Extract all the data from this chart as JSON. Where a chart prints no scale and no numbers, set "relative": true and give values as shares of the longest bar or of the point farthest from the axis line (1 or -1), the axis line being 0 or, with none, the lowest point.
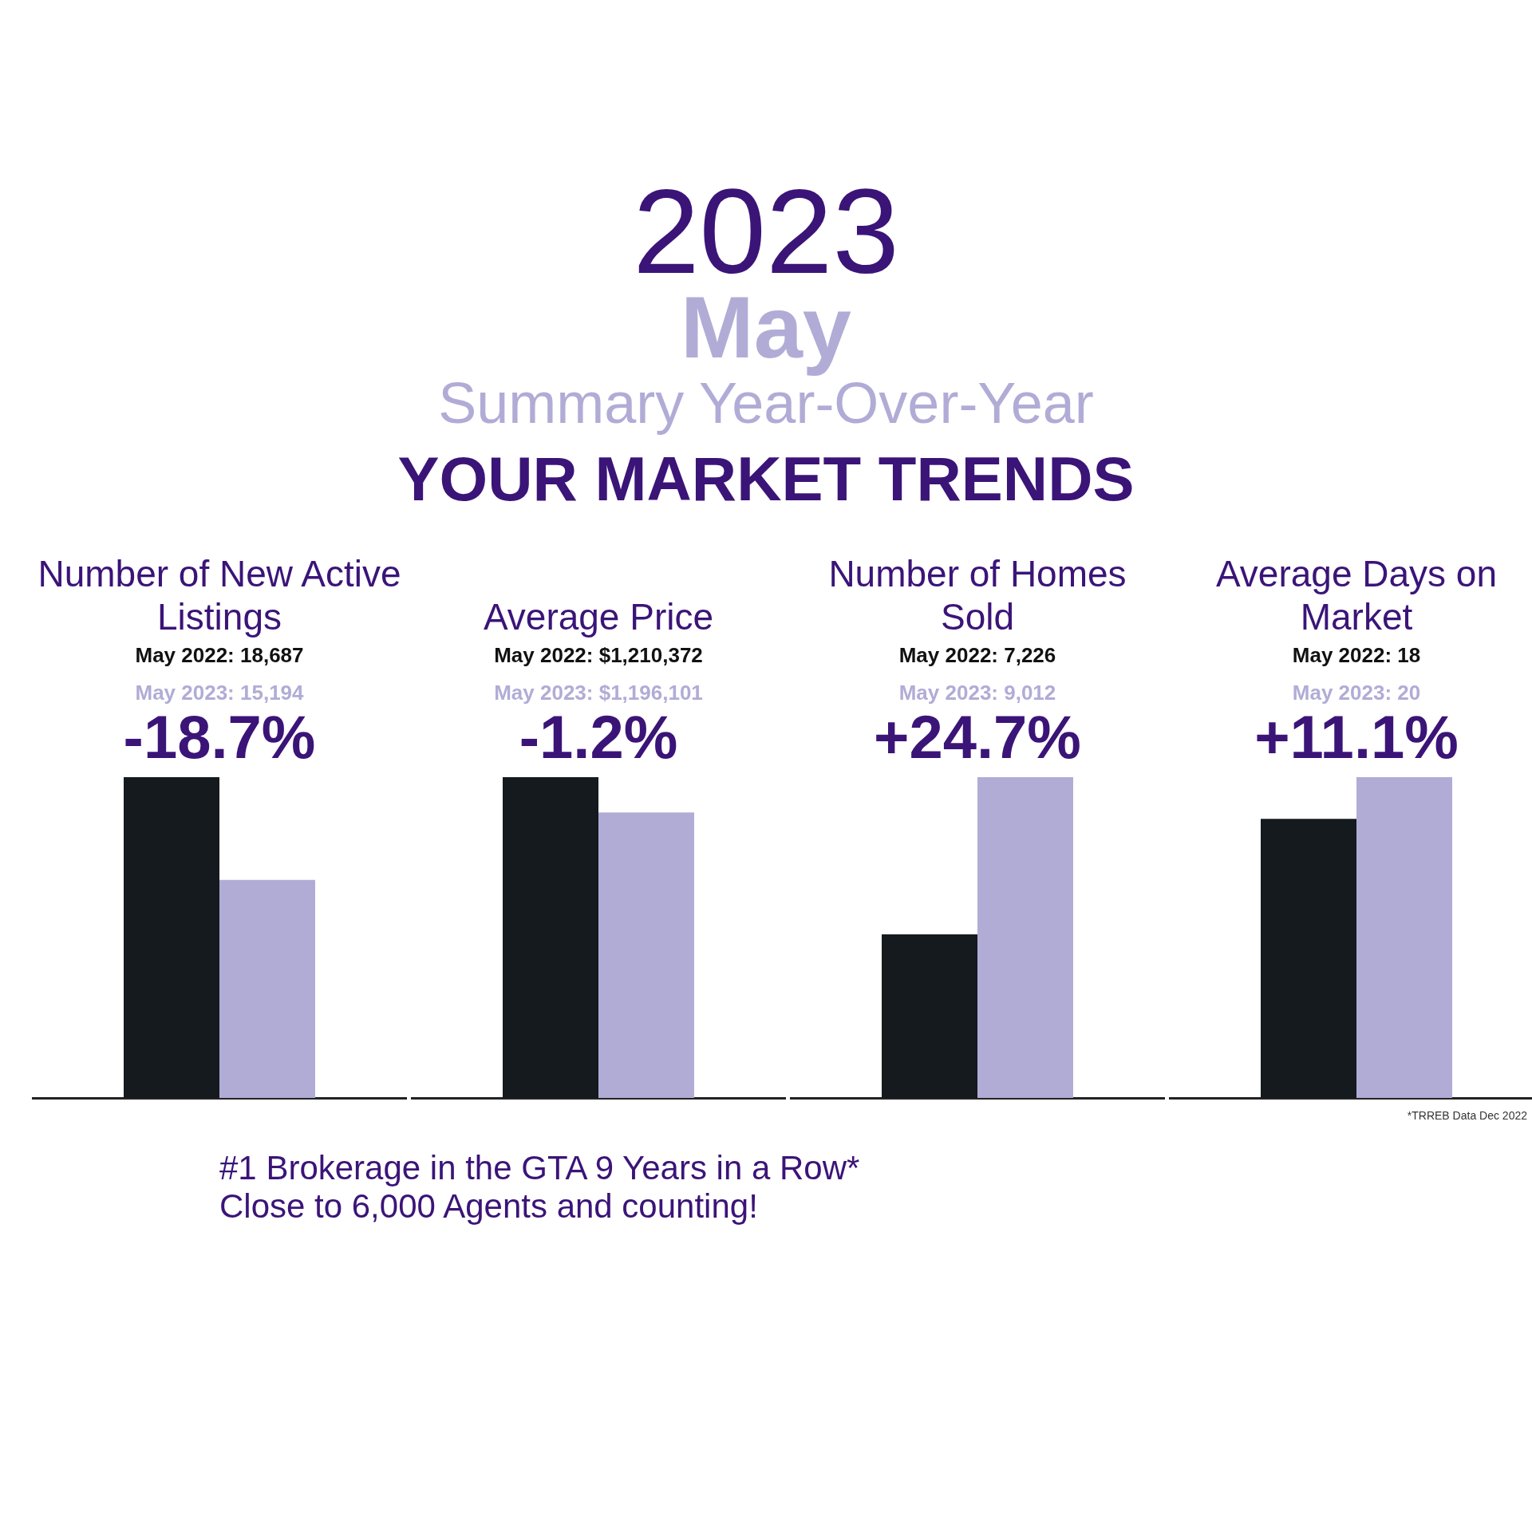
{
  "chart_data": [
    {
      "type": "other",
      "title": "2023",
      "subtitle": "May",
      "annotations": [
        "Summary  Year-Over-Year",
        "YOUR MARKET TRENDS"
      ]
    },
    {
      "type": "bar",
      "title": "Number of New Active Listings",
      "annotations": [
        "May 2022: 18,687",
        "May 2023: 15,194",
        "-18.7%"
      ],
      "categories": [
        null
      ],
      "relative": true,
      "series": [
        {
          "color": "#141a1d",
          "values": [
            1
          ]
        },
        {
          "color": "#b1acd6",
          "values": [
            0.68
          ]
        }
      ]
    },
    {
      "type": "bar",
      "title": "Average Price",
      "annotations": [
        "May 2022: $1,210,372",
        "May 2023: $1,196,101",
        "-1.2%"
      ],
      "categories": [
        null
      ],
      "relative": true,
      "series": [
        {
          "color": "#141a1d",
          "values": [
            1
          ]
        },
        {
          "color": "#b1acd6",
          "values": [
            0.89
          ]
        }
      ]
    },
    {
      "type": "bar",
      "title": "Number of Homes Sold",
      "annotations": [
        "May 2022: 7,226",
        "May 2023: 9,012",
        "+24.7%"
      ],
      "categories": [
        null
      ],
      "relative": true,
      "series": [
        {
          "color": "#141a1d",
          "values": [
            0.51
          ]
        },
        {
          "color": "#b1acd6",
          "values": [
            1
          ]
        }
      ]
    },
    {
      "type": "bar",
      "title": "Average Days on Market",
      "annotations": [
        "May 2022: 18",
        "May 2023: 20",
        "+11.1%"
      ],
      "categories": [
        null
      ],
      "relative": true,
      "series": [
        {
          "color": "#141a1d",
          "values": [
            0.87
          ]
        },
        {
          "color": "#b1acd6",
          "values": [
            1
          ]
        }
      ]
    },
    {
      "type": "other",
      "annotations": [
        "#1 Brokerage in the GTA  9 Years in a Row*",
        "Close to 6,000 Agents and counting!",
        "*TRREB Data Dec 2022"
      ]
    }
  ]
}
